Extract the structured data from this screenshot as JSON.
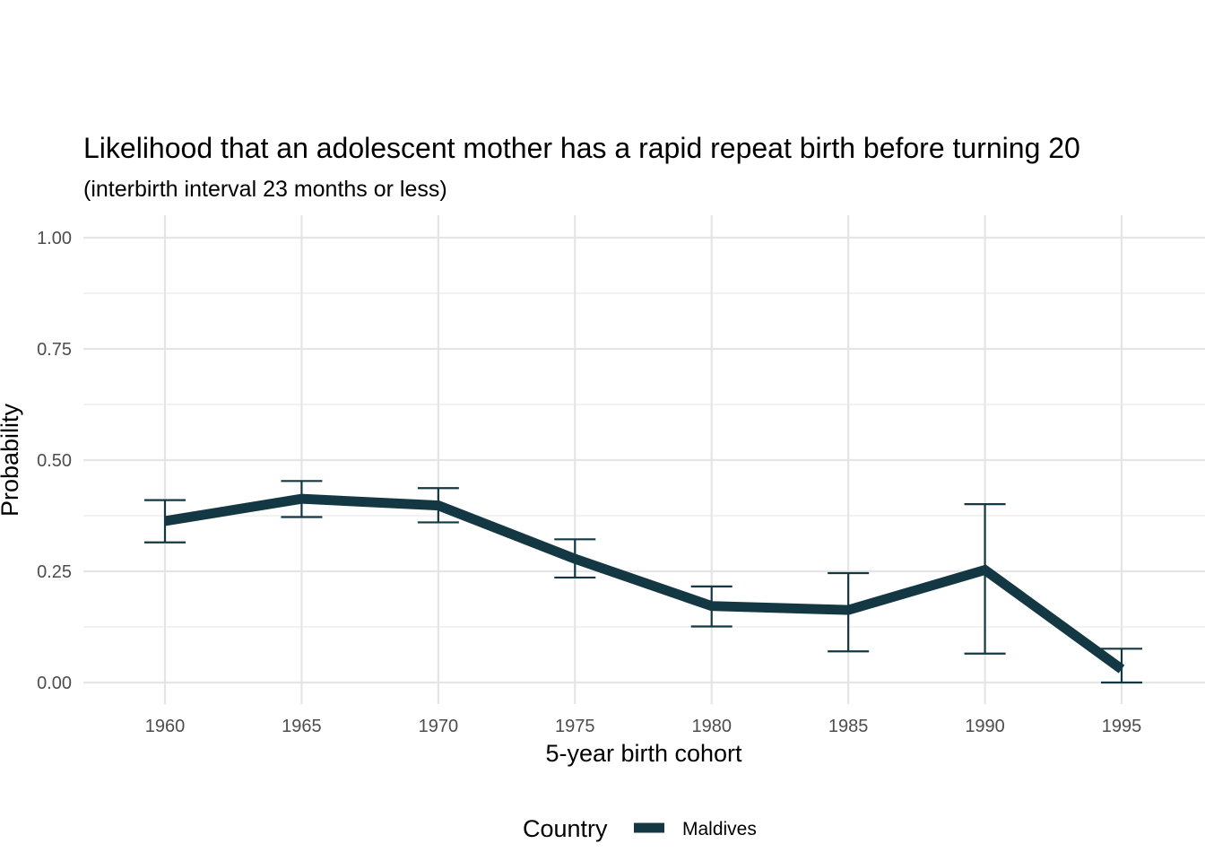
{
  "chart_data": {
    "type": "line",
    "title": "Likelihood that an adolescent mother has a rapid repeat birth before turning 20",
    "subtitle": "(interbirth interval 23 months or less)",
    "xlabel": "5-year birth cohort",
    "ylabel": "Probability",
    "x": [
      1960,
      1965,
      1970,
      1975,
      1980,
      1985,
      1990,
      1995
    ],
    "x_tick_labels": [
      "1960",
      "1965",
      "1970",
      "1975",
      "1980",
      "1985",
      "1990",
      "1995"
    ],
    "y_ticks": [
      0,
      0.25,
      0.5,
      0.75,
      1.0
    ],
    "y_tick_labels": [
      "0.00",
      "0.25",
      "0.50",
      "0.75",
      "1.00"
    ],
    "ylim": [
      0,
      1.0
    ],
    "xlim": [
      1957,
      1998
    ],
    "grid": true,
    "legend_position": "bottom",
    "legend_title": "Country",
    "series": [
      {
        "name": "Maldives",
        "color": "#133843",
        "values": [
          0.363,
          0.413,
          0.398,
          0.278,
          0.172,
          0.163,
          0.253,
          0.03
        ],
        "lower": [
          0.315,
          0.372,
          0.36,
          0.236,
          0.126,
          0.07,
          0.065,
          0.0
        ],
        "upper": [
          0.41,
          0.453,
          0.437,
          0.322,
          0.216,
          0.246,
          0.401,
          0.076
        ]
      }
    ]
  }
}
